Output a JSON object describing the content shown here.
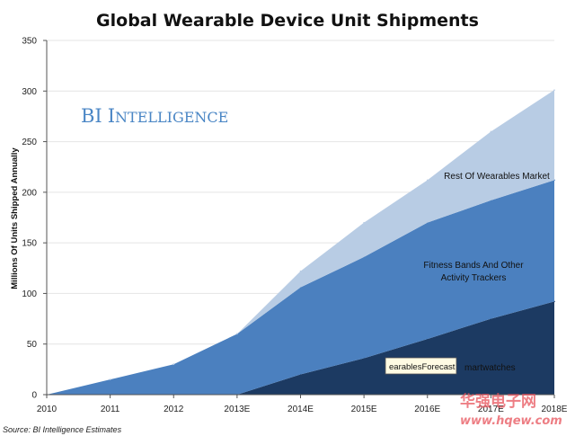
{
  "chart_data": {
    "type": "area",
    "stacked": true,
    "title": "Global Wearable Device Unit Shipments",
    "ylabel": "Millions Of Units Shipped Annually",
    "xlabel": "",
    "categories": [
      "2010",
      "2011",
      "2012",
      "2013E",
      "2014E",
      "2015E",
      "2016E",
      "2017E",
      "2018E"
    ],
    "ylim": [
      0,
      350
    ],
    "yticks": [
      0,
      50,
      100,
      150,
      200,
      250,
      300,
      350
    ],
    "grid": true,
    "series": [
      {
        "name": "martwatches",
        "color": "#1c3a62",
        "values": [
          0,
          0,
          0,
          0,
          20,
          36,
          55,
          75,
          92
        ]
      },
      {
        "name": "Fitness Bands And Other Activity Trackers",
        "color": "#4b80bf",
        "values": [
          0,
          15,
          30,
          60,
          86,
          100,
          115,
          117,
          120
        ]
      },
      {
        "name": "Rest Of Wearables Market",
        "color": "#b8cce4",
        "values": [
          0,
          0,
          0,
          0,
          16,
          34,
          42,
          68,
          89
        ]
      }
    ],
    "series_label_lines": [
      [
        "martwatches"
      ],
      [
        "Fitness Bands And Other",
        "Activity Trackers"
      ],
      [
        "Rest Of Wearables Market"
      ]
    ],
    "brand": "BI Intelligence",
    "source": "Source: BI Intelligence Estimates",
    "tooltip": "earablesForecast",
    "watermark": "华强电子网",
    "watermark_url": "www.hqew.com"
  }
}
